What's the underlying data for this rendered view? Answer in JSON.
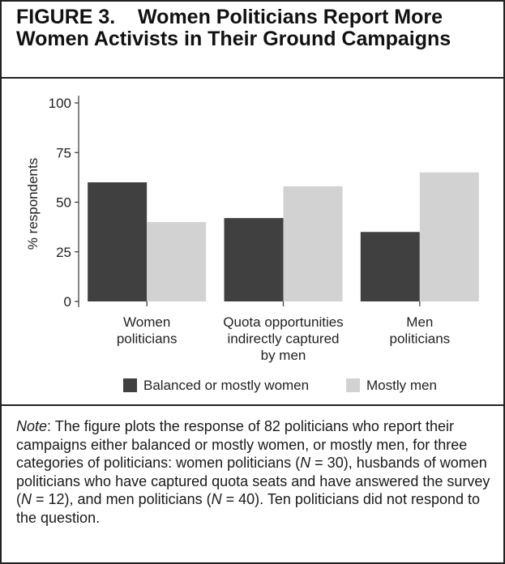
{
  "figure": {
    "title_line1": "FIGURE 3.    Women Politicians Report More",
    "title_line2": "Women Activists in Their Ground Campaigns"
  },
  "note": {
    "label": "Note",
    "p1": ": The figure plots the response of 82 politicians who report their campaigns either balanced or mostly women, or mostly men, for three categories of politicians: women politicians (",
    "N": "N",
    "p2": " = 30), husbands of women politicians who have captured quota seats and have answered the survey (",
    "p3": " = 12), and men politicians (",
    "p4": " = 40). Ten politicians did not respond to the question."
  },
  "chart_data": {
    "type": "bar",
    "ylabel": "% respondents",
    "xlabel": "",
    "ylim": [
      0,
      100
    ],
    "yticks": [
      0,
      25,
      50,
      75,
      100
    ],
    "categories": [
      [
        "Women",
        "politicians"
      ],
      [
        "Quota opportunities",
        "indirectly captured",
        "by men"
      ],
      [
        "Men",
        "politicians"
      ]
    ],
    "series": [
      {
        "name": "Balanced or mostly women",
        "color": "#404040",
        "values": [
          60,
          42,
          35
        ]
      },
      {
        "name": "Mostly men",
        "color": "#d2d2d2",
        "values": [
          40,
          58,
          65
        ]
      }
    ],
    "grid": false,
    "legend_position": "bottom"
  }
}
